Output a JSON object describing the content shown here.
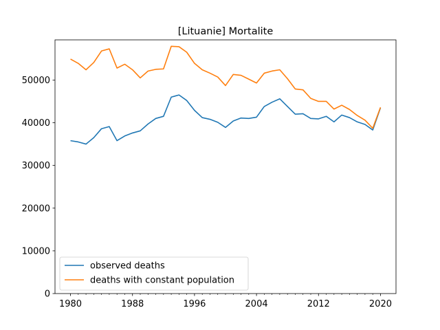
{
  "chart_data": {
    "type": "line",
    "title": "[Lituanie] Mortalite",
    "xlabel": "",
    "ylabel": "",
    "xlim": [
      1978,
      2022
    ],
    "ylim": [
      0,
      59400
    ],
    "x_ticks": [
      1980,
      1988,
      1996,
      2004,
      2012,
      2020
    ],
    "y_ticks": [
      0,
      10000,
      20000,
      30000,
      40000,
      50000
    ],
    "grid": false,
    "legend": "lower-left",
    "x": [
      1980,
      1981,
      1982,
      1983,
      1984,
      1985,
      1986,
      1987,
      1988,
      1989,
      1990,
      1991,
      1992,
      1993,
      1994,
      1995,
      1996,
      1997,
      1998,
      1999,
      2000,
      2001,
      2002,
      2003,
      2004,
      2005,
      2006,
      2007,
      2008,
      2009,
      2010,
      2011,
      2012,
      2013,
      2014,
      2015,
      2016,
      2017,
      2018,
      2019,
      2020
    ],
    "series": [
      {
        "name": "observed deaths",
        "color": "#1f77b4",
        "values": [
          35800,
          35500,
          35000,
          36500,
          38600,
          39100,
          35800,
          36900,
          37600,
          38100,
          39700,
          41000,
          41500,
          46000,
          46500,
          45200,
          42900,
          41200,
          40800,
          40100,
          38900,
          40400,
          41100,
          41000,
          41300,
          43800,
          44800,
          45600,
          43800,
          42000,
          42100,
          41000,
          40900,
          41500,
          40200,
          41800,
          41200,
          40200,
          39600,
          38300,
          43500
        ]
      },
      {
        "name": "deaths with constant population",
        "color": "#ff7f0e",
        "values": [
          54900,
          53900,
          52400,
          54100,
          56800,
          57300,
          52800,
          53700,
          52400,
          50500,
          52100,
          52500,
          52600,
          57900,
          57800,
          56500,
          53900,
          52400,
          51600,
          50700,
          48700,
          51300,
          51100,
          50200,
          49300,
          51600,
          52100,
          52400,
          50300,
          47900,
          47700,
          45700,
          45000,
          45000,
          43200,
          44100,
          43100,
          41700,
          40600,
          38700,
          43600
        ]
      }
    ]
  }
}
